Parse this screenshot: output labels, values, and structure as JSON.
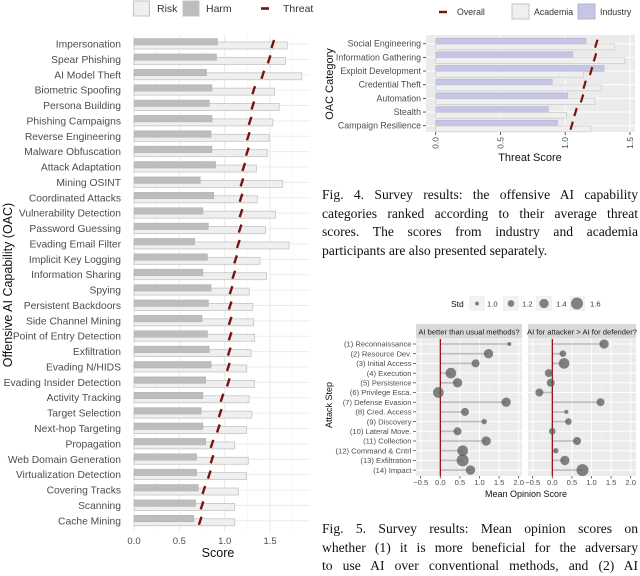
{
  "colors": {
    "risk": "#efefef",
    "harm": "#bdbdbd",
    "threat": "#7a1212",
    "industry": "#c5c5e6",
    "academia": "#efefef",
    "panel_bg": "#ebebeb",
    "strip_bg": "#d9d9d9",
    "zero_line": "#8b0000",
    "point": "#555555"
  },
  "chart_data": [
    {
      "type": "bar",
      "xlabel": "Score",
      "ylabel": "Offensive AI Capability (OAC)",
      "xlim": [
        0,
        1.94
      ],
      "xticks": [
        "0.0",
        "0.5",
        "1.0",
        "1.5"
      ],
      "grid": true,
      "legend": {
        "placement": "top",
        "entries": [
          "Risk",
          "Harm",
          "Threat"
        ]
      },
      "categories": [
        "Impersonation",
        "Spear Phishing",
        "AI Model Theft",
        "Biometric Spoofing",
        "Persona Building",
        "Phishing Campaigns",
        "Reverse Engineering",
        "Malware Obfuscation",
        "Attack Adaptation",
        "Mining OSINT",
        "Coordinated Attacks",
        "Vulnerability Detection",
        "Password Guessing",
        "Evading Email Filter",
        "Implicit Key Logging",
        "Information Sharing",
        "Spying",
        "Persistent Backdoors",
        "Side Channel Mining",
        "Point of Entry Detection",
        "Exfiltration",
        "Evading N/HIDS",
        "Evading Insider Detection",
        "Activity Tracking",
        "Target Selection",
        "Next-hop Targeting",
        "Propagation",
        "Web Domain Generation",
        "Virtualization Detection",
        "Covering Tracks",
        "Scanning",
        "Cache Mining"
      ],
      "series": [
        {
          "name": "Risk",
          "values": [
            1.69,
            1.67,
            1.85,
            1.55,
            1.6,
            1.53,
            1.49,
            1.47,
            1.35,
            1.64,
            1.36,
            1.56,
            1.45,
            1.71,
            1.39,
            1.46,
            1.27,
            1.31,
            1.32,
            1.33,
            1.29,
            1.24,
            1.33,
            1.27,
            1.3,
            1.24,
            1.11,
            1.26,
            1.24,
            1.15,
            1.11,
            1.11
          ]
        },
        {
          "name": "Harm",
          "values": [
            0.92,
            0.91,
            0.8,
            0.86,
            0.83,
            0.86,
            0.85,
            0.86,
            0.9,
            0.73,
            0.88,
            0.76,
            0.82,
            0.67,
            0.81,
            0.76,
            0.85,
            0.82,
            0.75,
            0.81,
            0.83,
            0.85,
            0.79,
            0.76,
            0.74,
            0.76,
            0.79,
            0.69,
            0.69,
            0.71,
            0.68,
            0.66
          ]
        },
        {
          "name": "Threat",
          "values": [
            1.53,
            1.49,
            1.42,
            1.32,
            1.31,
            1.28,
            1.26,
            1.25,
            1.21,
            1.19,
            1.18,
            1.18,
            1.17,
            1.15,
            1.12,
            1.1,
            1.07,
            1.06,
            1.06,
            1.06,
            1.05,
            1.04,
            1.04,
            0.97,
            0.95,
            0.93,
            0.86,
            0.86,
            0.83,
            0.77,
            0.75,
            0.73
          ]
        }
      ]
    },
    {
      "type": "bar",
      "xlabel": "Threat Score",
      "ylabel": "OAC Category",
      "xlim": [
        -0.07,
        1.54
      ],
      "xticks": [
        "0.0",
        "0.5",
        "1.0",
        "1.5"
      ],
      "grid": true,
      "legend": {
        "placement": "top",
        "entries": [
          "Overall",
          "Academia",
          "Industry"
        ]
      },
      "categories": [
        "Social Engineering",
        "Information Gathering",
        "Exploit Development",
        "Credential Theft",
        "Automation",
        "Stealth",
        "Campaign Resilience"
      ],
      "series": [
        {
          "name": "Industry",
          "values": [
            1.16,
            1.06,
            1.3,
            0.9,
            1.02,
            0.87,
            0.94
          ]
        },
        {
          "name": "Academia",
          "values": [
            1.38,
            1.46,
            1.14,
            1.28,
            1.23,
            1.01,
            1.2
          ]
        },
        {
          "name": "Overall",
          "values": [
            1.24,
            1.23,
            1.2,
            1.15,
            1.13,
            1.08,
            1.05
          ]
        }
      ]
    },
    {
      "type": "scatter",
      "xlabel": "Mean Opinion Score",
      "ylabel": "Attack Step",
      "xlim": [
        -0.62,
        2.1
      ],
      "xticks": [
        "-0.5",
        "0.0",
        "0.5",
        "1.0",
        "1.5",
        "2.0"
      ],
      "grid": true,
      "legend": {
        "placement": "top",
        "title": "Std",
        "entries": [
          "1.0",
          "1.2",
          "1.4",
          "1.6"
        ]
      },
      "categories": [
        "(1) Reconnaissance",
        "(2) Resource Dev.",
        "(3) Initial Access",
        "(4) Execution",
        "(5) Persistence",
        "(6) Privilege Esca.",
        "(7) Defense Evasion",
        "(8) Cred. Access",
        "(9) Discovery",
        "(10) Lateral Move.",
        "(11) Collection",
        "(12) Command & Cntrl",
        "(13) Exfiltration",
        "(14) Impact"
      ],
      "panels": [
        {
          "title": "AI better than usual methods?",
          "mean": [
            1.76,
            1.23,
            0.9,
            0.27,
            0.44,
            -0.05,
            1.68,
            0.63,
            1.12,
            0.44,
            1.17,
            0.57,
            0.57,
            0.77
          ],
          "std": [
            1.0,
            1.4,
            1.3,
            1.5,
            1.4,
            1.5,
            1.4,
            1.3,
            1.1,
            1.3,
            1.4,
            1.5,
            1.6,
            1.4
          ]
        },
        {
          "title": "AI for attacker > AI for defender?",
          "mean": [
            1.32,
            0.27,
            0.3,
            -0.09,
            -0.04,
            -0.33,
            1.23,
            0.36,
            0.41,
            0.0,
            0.63,
            0.09,
            0.32,
            0.77
          ],
          "std": [
            1.4,
            1.2,
            1.5,
            1.3,
            1.3,
            1.3,
            1.3,
            1.0,
            1.2,
            1.2,
            1.3,
            1.1,
            1.4,
            1.6
          ]
        }
      ]
    }
  ],
  "captions": {
    "fig4": [
      "Fig. 4.  Survey results: the offensive AI capability",
      "categories ranked according to their average threat",
      "scores.  The  scores  from  industry  and  academia",
      "participants are also presented separately."
    ],
    "fig5": [
      "Fig.  5.  Survey  results:  Mean  opinion  scores  on",
      "whether (1) it is more beneficial for the adversary",
      "to  use  AI  over  conventional  methods,  and  (2)  AI"
    ]
  }
}
